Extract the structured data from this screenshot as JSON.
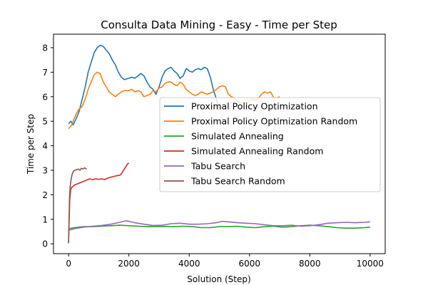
{
  "chart_data": {
    "type": "line",
    "title": "Consulta Data Mining - Easy - Time per Step",
    "xlabel": "Solution (Step)",
    "ylabel": "Time per Step",
    "xlim": [
      -500,
      10500
    ],
    "ylim": [
      -0.4,
      8.55
    ],
    "x_ticks": [
      0,
      2000,
      4000,
      6000,
      8000,
      10000
    ],
    "y_ticks": [
      0,
      1,
      2,
      3,
      4,
      5,
      6,
      7,
      8
    ],
    "grid": false,
    "legend_position": "center-right",
    "series": [
      {
        "name": "Proximal Policy Optimization",
        "color": "#1f77b4",
        "points": [
          [
            0,
            4.9
          ],
          [
            80,
            5.0
          ],
          [
            150,
            4.85
          ],
          [
            250,
            5.1
          ],
          [
            350,
            5.4
          ],
          [
            450,
            5.9
          ],
          [
            550,
            6.4
          ],
          [
            650,
            7.0
          ],
          [
            750,
            7.4
          ],
          [
            850,
            7.8
          ],
          [
            950,
            8.0
          ],
          [
            1050,
            8.1
          ],
          [
            1150,
            8.05
          ],
          [
            1250,
            7.9
          ],
          [
            1350,
            7.75
          ],
          [
            1450,
            7.5
          ],
          [
            1550,
            7.3
          ],
          [
            1650,
            7.0
          ],
          [
            1750,
            6.8
          ],
          [
            1850,
            6.7
          ],
          [
            2000,
            6.75
          ],
          [
            2100,
            6.8
          ],
          [
            2200,
            6.75
          ],
          [
            2300,
            6.85
          ],
          [
            2400,
            6.95
          ],
          [
            2500,
            6.85
          ],
          [
            2600,
            6.6
          ],
          [
            2700,
            6.4
          ],
          [
            2800,
            6.3
          ],
          [
            2900,
            6.1
          ],
          [
            3000,
            6.4
          ],
          [
            3100,
            6.8
          ],
          [
            3200,
            7.05
          ],
          [
            3300,
            7.15
          ],
          [
            3400,
            7.2
          ],
          [
            3500,
            7.05
          ],
          [
            3600,
            6.95
          ],
          [
            3700,
            6.75
          ],
          [
            3800,
            6.85
          ],
          [
            3900,
            7.15
          ],
          [
            4000,
            7.05
          ],
          [
            4100,
            7.0
          ],
          [
            4200,
            7.1
          ],
          [
            4300,
            7.15
          ],
          [
            4400,
            7.1
          ],
          [
            4500,
            7.2
          ],
          [
            4600,
            7.15
          ],
          [
            4700,
            6.8
          ],
          [
            4800,
            6.3
          ],
          [
            4900,
            5.9
          ],
          [
            5000,
            5.5
          ]
        ]
      },
      {
        "name": "Proximal Policy Optimization Random",
        "color": "#ff7f0e",
        "points": [
          [
            0,
            4.7
          ],
          [
            80,
            4.8
          ],
          [
            150,
            5.0
          ],
          [
            250,
            5.3
          ],
          [
            350,
            5.5
          ],
          [
            450,
            5.6
          ],
          [
            550,
            5.9
          ],
          [
            650,
            6.3
          ],
          [
            750,
            6.6
          ],
          [
            850,
            6.9
          ],
          [
            950,
            7.0
          ],
          [
            1050,
            6.95
          ],
          [
            1150,
            6.6
          ],
          [
            1250,
            6.4
          ],
          [
            1350,
            6.2
          ],
          [
            1450,
            6.1
          ],
          [
            1550,
            6.0
          ],
          [
            1650,
            6.1
          ],
          [
            1750,
            6.2
          ],
          [
            1850,
            6.25
          ],
          [
            2000,
            6.25
          ],
          [
            2100,
            6.3
          ],
          [
            2200,
            6.2
          ],
          [
            2300,
            6.25
          ],
          [
            2400,
            6.2
          ],
          [
            2500,
            6.0
          ],
          [
            2600,
            6.05
          ],
          [
            2700,
            6.1
          ],
          [
            2800,
            6.25
          ],
          [
            2900,
            6.2
          ],
          [
            3000,
            6.35
          ],
          [
            3100,
            6.4
          ],
          [
            3200,
            6.55
          ],
          [
            3300,
            6.6
          ],
          [
            3400,
            6.6
          ],
          [
            3500,
            6.5
          ],
          [
            3600,
            6.45
          ],
          [
            3700,
            6.6
          ],
          [
            3800,
            6.5
          ],
          [
            3900,
            6.3
          ],
          [
            4000,
            6.2
          ],
          [
            4100,
            6.1
          ],
          [
            4200,
            6.05
          ],
          [
            4300,
            6.1
          ],
          [
            4400,
            6.2
          ],
          [
            4500,
            6.15
          ],
          [
            4600,
            6.1
          ],
          [
            4700,
            6.15
          ],
          [
            4800,
            6.2
          ],
          [
            4900,
            6.3
          ],
          [
            5000,
            6.4
          ],
          [
            5100,
            6.45
          ],
          [
            5200,
            6.4
          ],
          [
            5300,
            6.1
          ],
          [
            5400,
            6.0
          ],
          [
            5500,
            5.95
          ],
          [
            5600,
            5.8
          ],
          [
            5700,
            5.75
          ],
          [
            5800,
            5.8
          ],
          [
            5900,
            5.7
          ],
          [
            6000,
            5.85
          ],
          [
            6100,
            5.9
          ],
          [
            6200,
            5.85
          ],
          [
            6300,
            5.95
          ],
          [
            6400,
            6.1
          ],
          [
            6500,
            6.2
          ],
          [
            6600,
            6.15
          ],
          [
            6700,
            6.2
          ],
          [
            6800,
            5.95
          ],
          [
            6900,
            5.95
          ],
          [
            7000,
            6.0
          ]
        ]
      },
      {
        "name": "Simulated Annealing",
        "color": "#2ca02c",
        "points": [
          [
            0,
            0.62
          ],
          [
            200,
            0.66
          ],
          [
            500,
            0.7
          ],
          [
            800,
            0.7
          ],
          [
            1100,
            0.72
          ],
          [
            1400,
            0.74
          ],
          [
            1700,
            0.76
          ],
          [
            2000,
            0.74
          ],
          [
            2300,
            0.72
          ],
          [
            2600,
            0.7
          ],
          [
            2900,
            0.7
          ],
          [
            3200,
            0.71
          ],
          [
            3500,
            0.7
          ],
          [
            3800,
            0.72
          ],
          [
            4100,
            0.7
          ],
          [
            4400,
            0.66
          ],
          [
            4700,
            0.66
          ],
          [
            5000,
            0.7
          ],
          [
            5300,
            0.7
          ],
          [
            5600,
            0.72
          ],
          [
            5900,
            0.68
          ],
          [
            6200,
            0.66
          ],
          [
            6500,
            0.7
          ],
          [
            6800,
            0.72
          ],
          [
            7100,
            0.68
          ],
          [
            7400,
            0.7
          ],
          [
            7700,
            0.74
          ],
          [
            8000,
            0.76
          ],
          [
            8300,
            0.74
          ],
          [
            8600,
            0.7
          ],
          [
            8900,
            0.66
          ],
          [
            9200,
            0.64
          ],
          [
            9500,
            0.64
          ],
          [
            9800,
            0.66
          ],
          [
            10000,
            0.68
          ]
        ]
      },
      {
        "name": "Simulated Annealing Random",
        "color": "#d62728",
        "points": [
          [
            0,
            0.05
          ],
          [
            20,
            1.0
          ],
          [
            40,
            1.8
          ],
          [
            70,
            2.2
          ],
          [
            100,
            2.3
          ],
          [
            150,
            2.35
          ],
          [
            200,
            2.4
          ],
          [
            300,
            2.45
          ],
          [
            400,
            2.5
          ],
          [
            500,
            2.55
          ],
          [
            600,
            2.6
          ],
          [
            700,
            2.65
          ],
          [
            800,
            2.62
          ],
          [
            900,
            2.65
          ],
          [
            1000,
            2.63
          ],
          [
            1100,
            2.65
          ],
          [
            1200,
            2.62
          ],
          [
            1300,
            2.68
          ],
          [
            1400,
            2.72
          ],
          [
            1500,
            2.75
          ],
          [
            1600,
            2.78
          ],
          [
            1700,
            2.8
          ],
          [
            1750,
            2.85
          ],
          [
            1800,
            2.95
          ],
          [
            1850,
            3.05
          ],
          [
            1900,
            3.15
          ],
          [
            1950,
            3.25
          ],
          [
            2000,
            3.3
          ]
        ]
      },
      {
        "name": "Tabu Search",
        "color": "#9467bd",
        "points": [
          [
            0,
            0.55
          ],
          [
            200,
            0.62
          ],
          [
            500,
            0.68
          ],
          [
            800,
            0.72
          ],
          [
            1100,
            0.75
          ],
          [
            1400,
            0.8
          ],
          [
            1700,
            0.88
          ],
          [
            1900,
            0.94
          ],
          [
            2000,
            0.92
          ],
          [
            2200,
            0.86
          ],
          [
            2500,
            0.8
          ],
          [
            2800,
            0.75
          ],
          [
            3100,
            0.76
          ],
          [
            3400,
            0.82
          ],
          [
            3700,
            0.84
          ],
          [
            4000,
            0.8
          ],
          [
            4300,
            0.8
          ],
          [
            4600,
            0.82
          ],
          [
            4900,
            0.86
          ],
          [
            5100,
            0.92
          ],
          [
            5300,
            0.9
          ],
          [
            5600,
            0.86
          ],
          [
            5900,
            0.84
          ],
          [
            6200,
            0.82
          ],
          [
            6500,
            0.78
          ],
          [
            6800,
            0.74
          ],
          [
            7100,
            0.74
          ],
          [
            7400,
            0.76
          ],
          [
            7700,
            0.72
          ],
          [
            8000,
            0.74
          ],
          [
            8300,
            0.78
          ],
          [
            8600,
            0.84
          ],
          [
            8900,
            0.86
          ],
          [
            9200,
            0.88
          ],
          [
            9500,
            0.86
          ],
          [
            9800,
            0.88
          ],
          [
            10000,
            0.9
          ]
        ]
      },
      {
        "name": "Tabu Search Random",
        "color": "#8c564b",
        "points": [
          [
            0,
            0.02
          ],
          [
            15,
            1.0
          ],
          [
            30,
            1.8
          ],
          [
            50,
            2.3
          ],
          [
            80,
            2.6
          ],
          [
            120,
            2.85
          ],
          [
            160,
            2.95
          ],
          [
            200,
            3.0
          ],
          [
            260,
            3.02
          ],
          [
            320,
            3.05
          ],
          [
            380,
            3.0
          ],
          [
            420,
            3.08
          ],
          [
            480,
            3.05
          ],
          [
            520,
            3.1
          ],
          [
            560,
            3.08
          ],
          [
            600,
            3.05
          ]
        ]
      }
    ]
  }
}
